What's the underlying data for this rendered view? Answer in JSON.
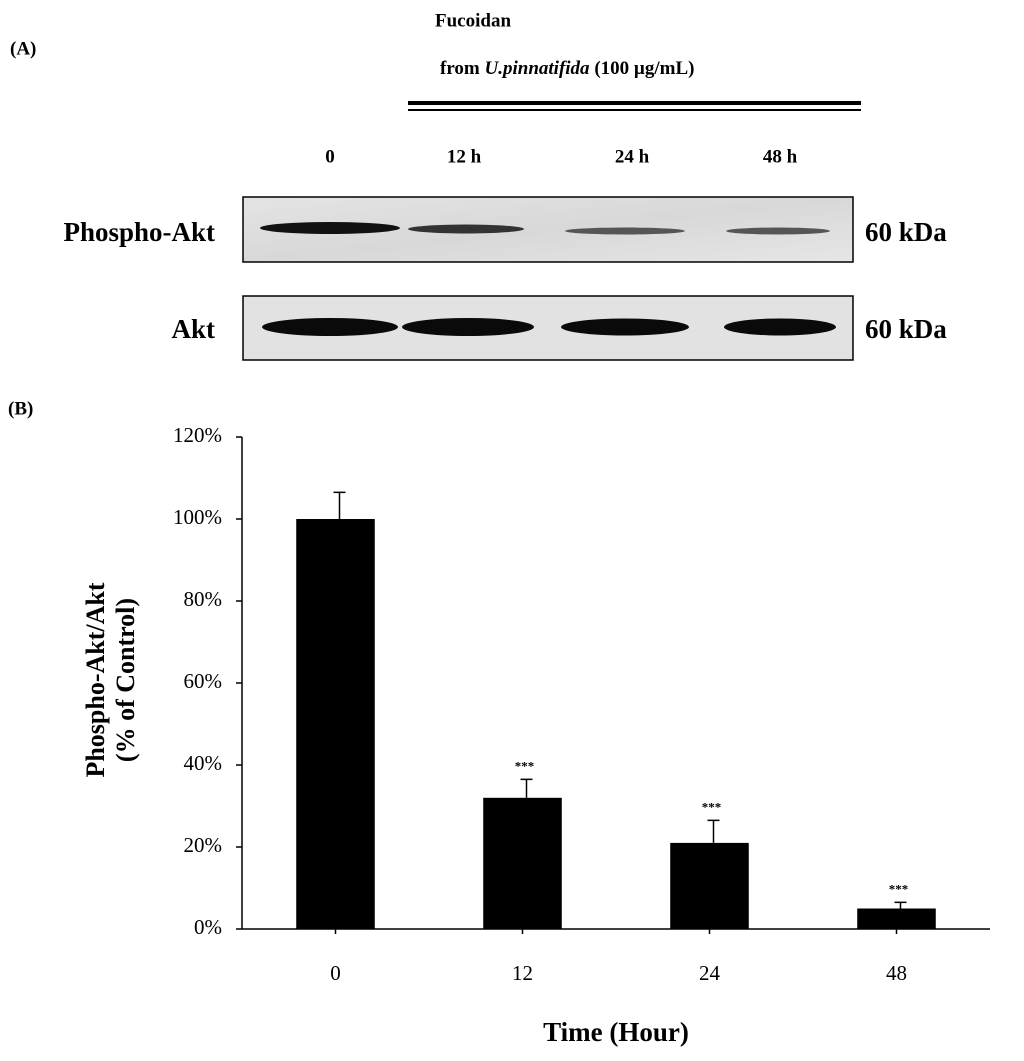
{
  "panel_a": {
    "panel_label": "(A)",
    "treatment": {
      "line1": "Fucoidan",
      "line2_prefix": "from ",
      "line2_species": "U.pinnatifida",
      "line2_suffix": " (100 µg/mL)"
    },
    "lanes": [
      "0",
      "12 h",
      "24 h",
      "48 h"
    ],
    "rows": [
      {
        "label": "Phospho-Akt",
        "size": "60 kDa"
      },
      {
        "label": "Akt",
        "size": "60 kDa"
      }
    ]
  },
  "chart_data": {
    "type": "bar",
    "panel_label": "(B)",
    "ylabel": [
      "Phospho-Akt/Akt",
      "(% of Control)"
    ],
    "xlabel": "Time (Hour)",
    "categories": [
      "0",
      "12",
      "24",
      "48"
    ],
    "values": [
      100,
      32,
      21,
      5
    ],
    "errors": [
      6.5,
      4.5,
      5.5,
      1.5
    ],
    "annotations": [
      null,
      "***",
      "***",
      "***"
    ],
    "color": "#000000",
    "ylim": [
      0,
      120
    ],
    "yticks": [
      {
        "value": 0,
        "label": "0%"
      },
      {
        "value": 20,
        "label": "20%"
      },
      {
        "value": 40,
        "label": "40%"
      },
      {
        "value": 60,
        "label": "60%"
      },
      {
        "value": 80,
        "label": "80%"
      },
      {
        "value": 100,
        "label": "100%"
      },
      {
        "value": 120,
        "label": "120%"
      }
    ]
  }
}
